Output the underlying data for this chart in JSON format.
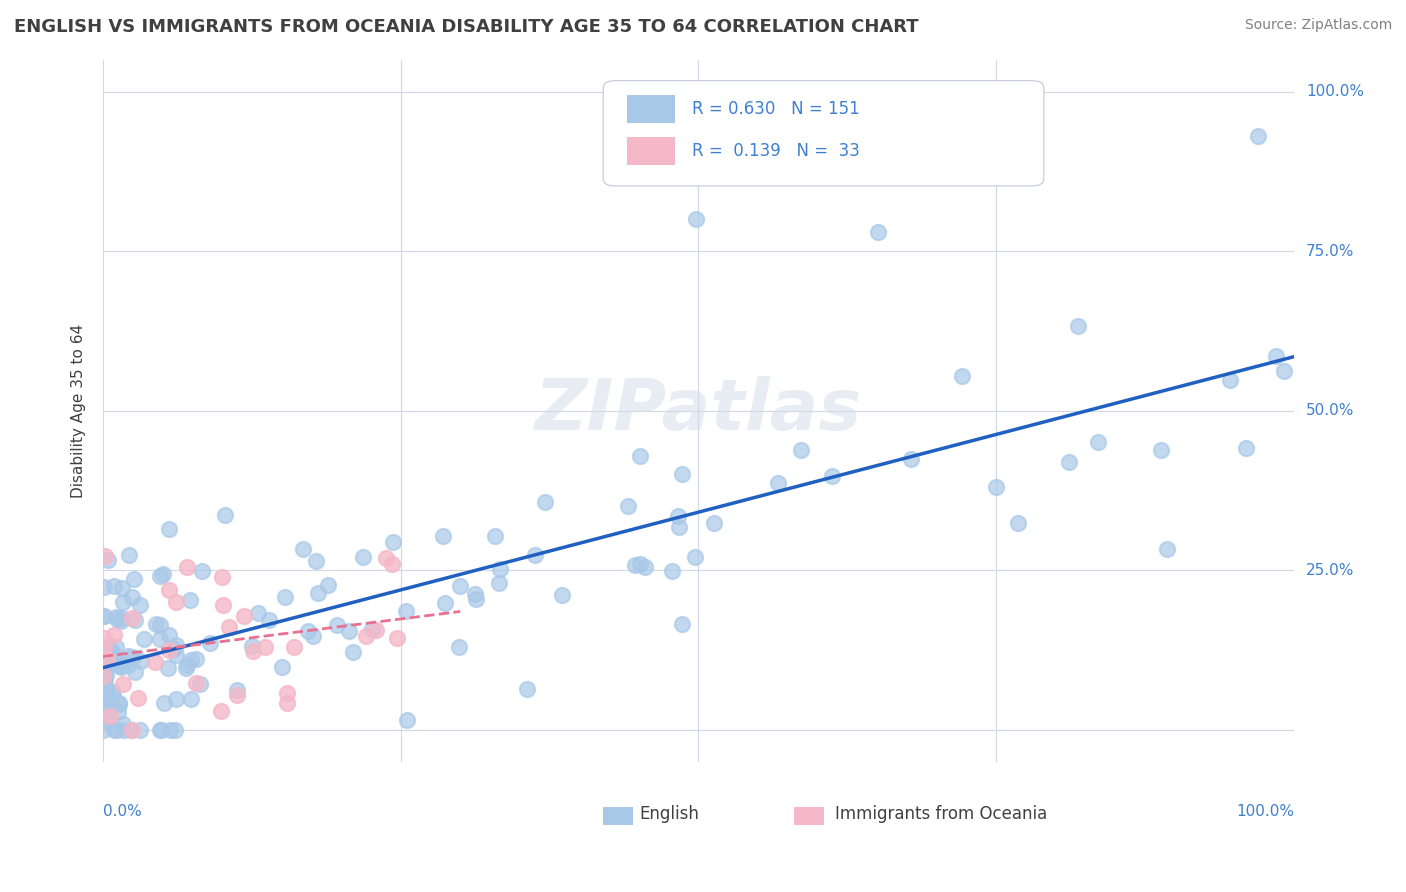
{
  "title": "ENGLISH VS IMMIGRANTS FROM OCEANIA DISABILITY AGE 35 TO 64 CORRELATION CHART",
  "source": "Source: ZipAtlas.com",
  "ylabel": "Disability Age 35 to 64",
  "legend_r1": "R = 0.630",
  "legend_n1": "N = 151",
  "legend_r2": "R =  0.139",
  "legend_n2": "N =  33",
  "blue_color": "#a8c8e8",
  "pink_color": "#f4b8c8",
  "blue_line_color": "#2060c0",
  "pink_line_color": "#e87090",
  "title_color": "#404040",
  "axis_label_color": "#4080d0",
  "background_color": "#ffffff",
  "grid_color": "#d0d8e8"
}
